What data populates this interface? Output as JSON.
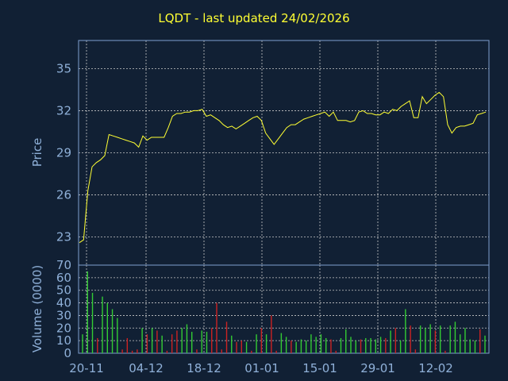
{
  "chart_data": [
    {
      "type": "line",
      "title": "LQDT - last updated 24/02/2026",
      "ylabel": "Price",
      "ylim": [
        21,
        37
      ],
      "yticks": [
        23,
        26,
        29,
        32,
        35
      ],
      "grid": true,
      "line_color": "#ffff33",
      "series": [
        {
          "x": [
            0,
            1,
            2,
            3,
            4,
            5,
            6,
            7,
            8,
            9,
            10,
            11,
            12,
            13,
            14,
            15,
            16,
            17,
            18,
            19,
            20,
            21,
            22,
            23,
            24,
            25,
            26,
            27,
            28,
            29,
            30,
            31,
            32,
            33,
            34,
            35,
            36,
            37,
            38,
            39,
            40,
            41,
            42,
            43,
            44,
            45,
            46,
            47,
            48,
            49,
            50,
            51,
            52,
            53,
            54,
            55,
            56,
            57,
            58,
            59,
            60,
            61,
            62,
            63,
            64,
            65,
            66,
            67,
            68,
            69,
            70,
            71,
            72,
            73,
            74,
            75,
            76,
            77,
            78,
            79,
            80,
            81,
            82,
            83,
            84,
            85,
            86,
            87,
            88,
            89,
            90,
            91,
            92,
            93,
            94,
            95,
            96
          ],
          "y": [
            22.6,
            22.8,
            26.3,
            28.0,
            28.3,
            28.5,
            28.8,
            30.3,
            30.2,
            30.1,
            30.0,
            29.9,
            29.8,
            29.7,
            29.4,
            30.2,
            29.9,
            30.1,
            30.1,
            30.1,
            30.1,
            30.8,
            31.6,
            31.8,
            31.8,
            31.9,
            31.9,
            32.0,
            32.0,
            32.1,
            31.6,
            31.7,
            31.5,
            31.3,
            31.0,
            30.8,
            30.9,
            30.7,
            30.9,
            31.1,
            31.3,
            31.5,
            31.6,
            31.3,
            30.4,
            30.0,
            29.6,
            30.0,
            30.4,
            30.8,
            31.0,
            31.0,
            31.2,
            31.4,
            31.5,
            31.6,
            31.7,
            31.8,
            31.9,
            31.6,
            31.9,
            31.3,
            31.3,
            31.3,
            31.2,
            31.3,
            31.9,
            32.0,
            31.8,
            31.8,
            31.7,
            31.7,
            31.9,
            31.8,
            32.1,
            32.0,
            32.3,
            32.5,
            32.7,
            31.5,
            31.5,
            33.0,
            32.5,
            32.8,
            33.1,
            33.3,
            33.0,
            31.0,
            30.4,
            30.8,
            30.9,
            30.9,
            31.0,
            31.1,
            31.7,
            31.8,
            31.9
          ]
        }
      ]
    },
    {
      "type": "bar",
      "ylabel": "Volume (0000)",
      "ylim": [
        0,
        70
      ],
      "yticks": [
        0,
        10,
        20,
        30,
        40,
        50,
        60,
        70
      ],
      "x_tick_labels": [
        "20-11",
        "04-12",
        "18-12",
        "01-01",
        "15-01",
        "29-01",
        "12-02"
      ],
      "up_color": "#33cc33",
      "down_color": "#cc2222",
      "values": [
        15,
        65,
        48,
        12,
        45,
        40,
        35,
        28,
        3,
        12,
        2,
        3,
        20,
        15,
        20,
        18,
        14,
        2,
        15,
        18,
        20,
        23,
        17,
        3,
        18,
        17,
        20,
        40,
        3,
        25,
        14,
        9,
        10,
        9,
        2,
        15,
        20,
        15,
        30,
        2,
        16,
        13,
        10,
        9,
        11,
        10,
        15,
        13,
        15,
        12,
        11,
        2,
        12,
        19,
        13,
        10,
        11,
        12,
        12,
        11,
        13,
        12,
        18,
        20,
        10,
        35,
        22,
        3,
        22,
        20,
        23,
        18,
        22,
        2,
        22,
        25,
        15,
        20,
        11,
        10,
        19,
        14
      ],
      "up": [
        1,
        1,
        1,
        0,
        1,
        1,
        1,
        1,
        0,
        0,
        0,
        0,
        1,
        0,
        1,
        0,
        1,
        0,
        0,
        0,
        1,
        1,
        1,
        0,
        1,
        1,
        0,
        0,
        0,
        0,
        1,
        0,
        0,
        1,
        0,
        1,
        0,
        1,
        0,
        0,
        1,
        1,
        0,
        1,
        1,
        1,
        1,
        1,
        1,
        1,
        0,
        0,
        1,
        1,
        1,
        1,
        0,
        1,
        1,
        1,
        1,
        0,
        1,
        0,
        1,
        1,
        0,
        0,
        1,
        1,
        1,
        0,
        1,
        0,
        1,
        1,
        1,
        1,
        1,
        1,
        0,
        1
      ]
    }
  ]
}
